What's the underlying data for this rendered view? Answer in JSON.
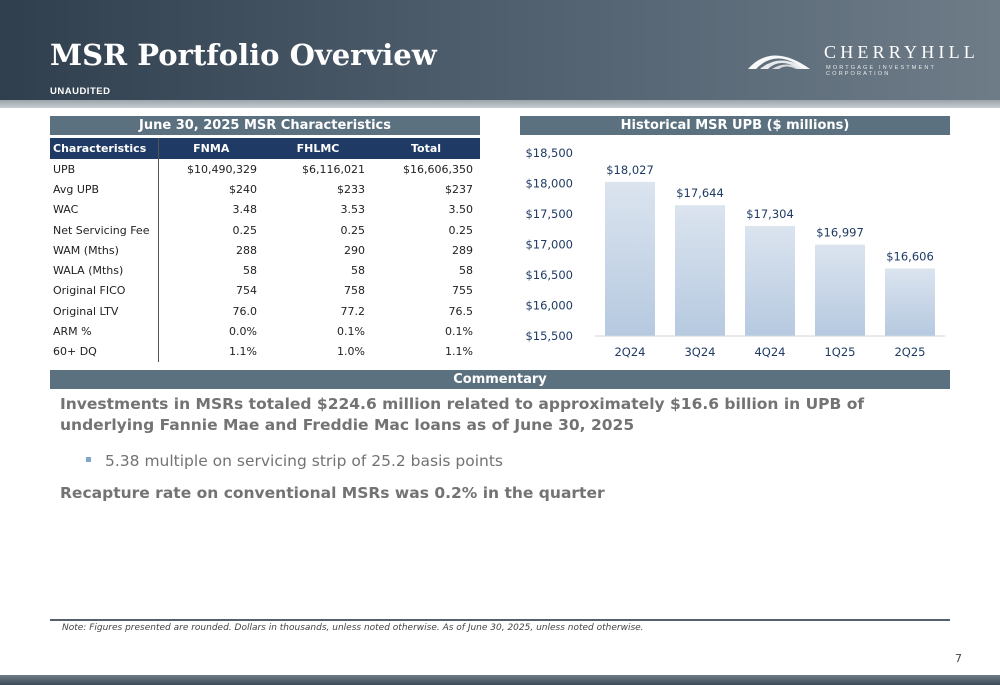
{
  "header": {
    "title": "MSR Portfolio Overview",
    "subtitle": "UNAUDITED",
    "logo_name": "CHERRYHILL",
    "logo_tagline": "MORTGAGE INVESTMENT CORPORATION"
  },
  "table_section": {
    "title": "June 30, 2025 MSR Characteristics",
    "columns": [
      "Characteristics",
      "FNMA",
      "FHLMC",
      "Total"
    ],
    "rows": [
      [
        "UPB",
        "$10,490,329",
        "$6,116,021",
        "$16,606,350"
      ],
      [
        "Avg UPB",
        "$240",
        "$233",
        "$237"
      ],
      [
        "WAC",
        "3.48",
        "3.53",
        "3.50"
      ],
      [
        "Net Servicing Fee",
        "0.25",
        "0.25",
        "0.25"
      ],
      [
        "WAM (Mths)",
        "288",
        "290",
        "289"
      ],
      [
        "WALA (Mths)",
        "58",
        "58",
        "58"
      ],
      [
        "Original FICO",
        "754",
        "758",
        "755"
      ],
      [
        "Original LTV",
        "76.0",
        "77.2",
        "76.5"
      ],
      [
        "ARM %",
        "0.0%",
        "0.1%",
        "0.1%"
      ],
      [
        "60+ DQ",
        "1.1%",
        "1.0%",
        "1.1%"
      ]
    ]
  },
  "chart_section": {
    "title": "Historical MSR UPB ($ millions)"
  },
  "chart_data": {
    "type": "bar",
    "categories": [
      "2Q24",
      "3Q24",
      "4Q24",
      "1Q25",
      "2Q25"
    ],
    "values": [
      18027,
      17644,
      17304,
      16997,
      16606
    ],
    "data_labels": [
      "$18,027",
      "$17,644",
      "$17,304",
      "$16,997",
      "$16,606"
    ],
    "ylim": [
      15500,
      18500
    ],
    "yticks": [
      15500,
      16000,
      16500,
      17000,
      17500,
      18000,
      18500
    ],
    "ytick_labels": [
      "$15,500",
      "$16,000",
      "$16,500",
      "$17,000",
      "$17,500",
      "$18,000",
      "$18,500"
    ],
    "bar_gradient_top": "#dbe4ef",
    "bar_gradient_bottom": "#b6c9e0",
    "label_color": "#1f3a64",
    "grid": false
  },
  "commentary": {
    "title": "Commentary",
    "paragraph1": "Investments in MSRs totaled $224.6 million related to approximately $16.6 billion in UPB of underlying Fannie Mae and Freddie Mac loans as of June 30, 2025",
    "bullet1": "5.38 multiple on servicing strip of 25.2 basis points",
    "paragraph2": "Recapture rate on conventional MSRs was 0.2% in the quarter"
  },
  "footer": {
    "note": "Note: Figures presented are rounded. Dollars in thousands, unless noted otherwise. As of June 30, 2025, unless noted otherwise.",
    "page_number": "7"
  },
  "colors": {
    "section_bar": "#5b7180",
    "table_header": "#1f3a64",
    "commentary_text": "#737373"
  }
}
